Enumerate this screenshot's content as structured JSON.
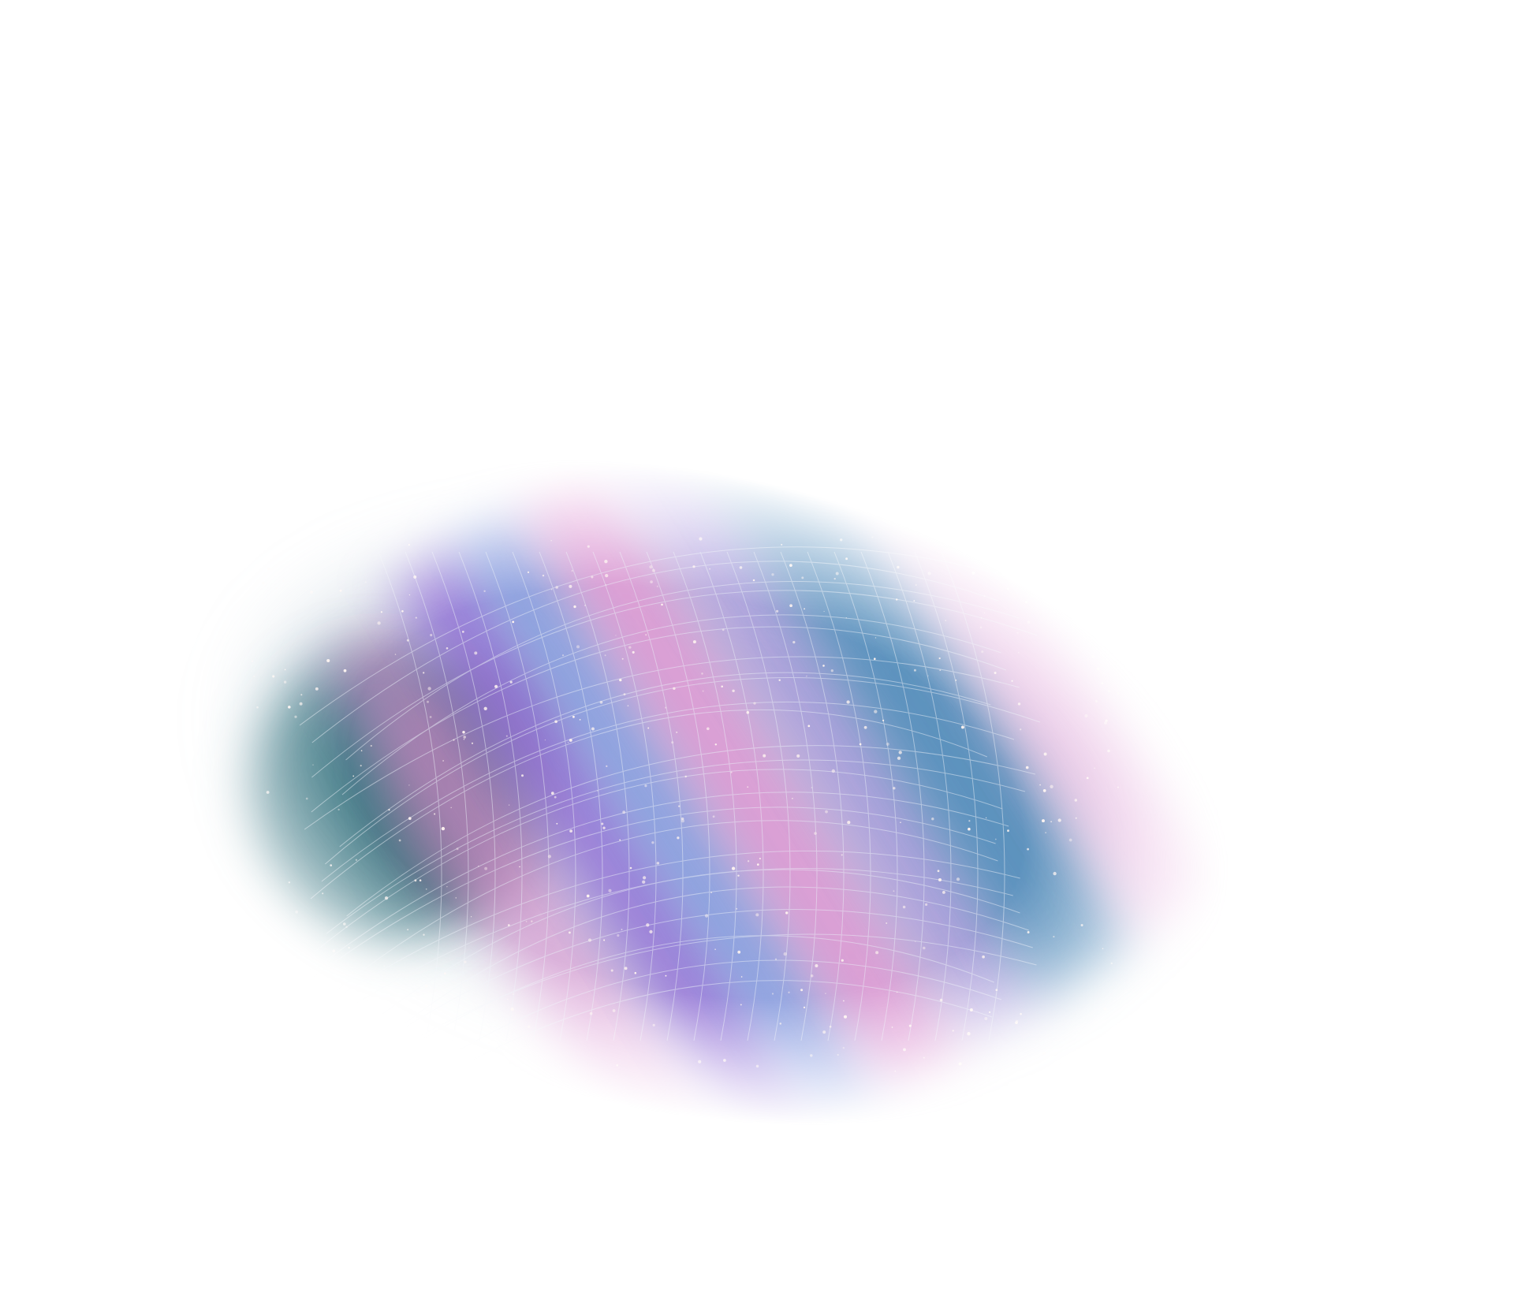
{
  "scene": {
    "description_icon": "galaxy-nebula-icon",
    "colors": {
      "background": "#ffffff",
      "teal": "#3f7d8a",
      "deep_teal": "#2f6e7a",
      "violet": "#8b63d6",
      "pink": "#e08ad0",
      "blue": "#6f8fe0",
      "steel_blue": "#4a86b8",
      "star": "#fff4f0",
      "grid_line": "#e9eef6"
    }
  }
}
